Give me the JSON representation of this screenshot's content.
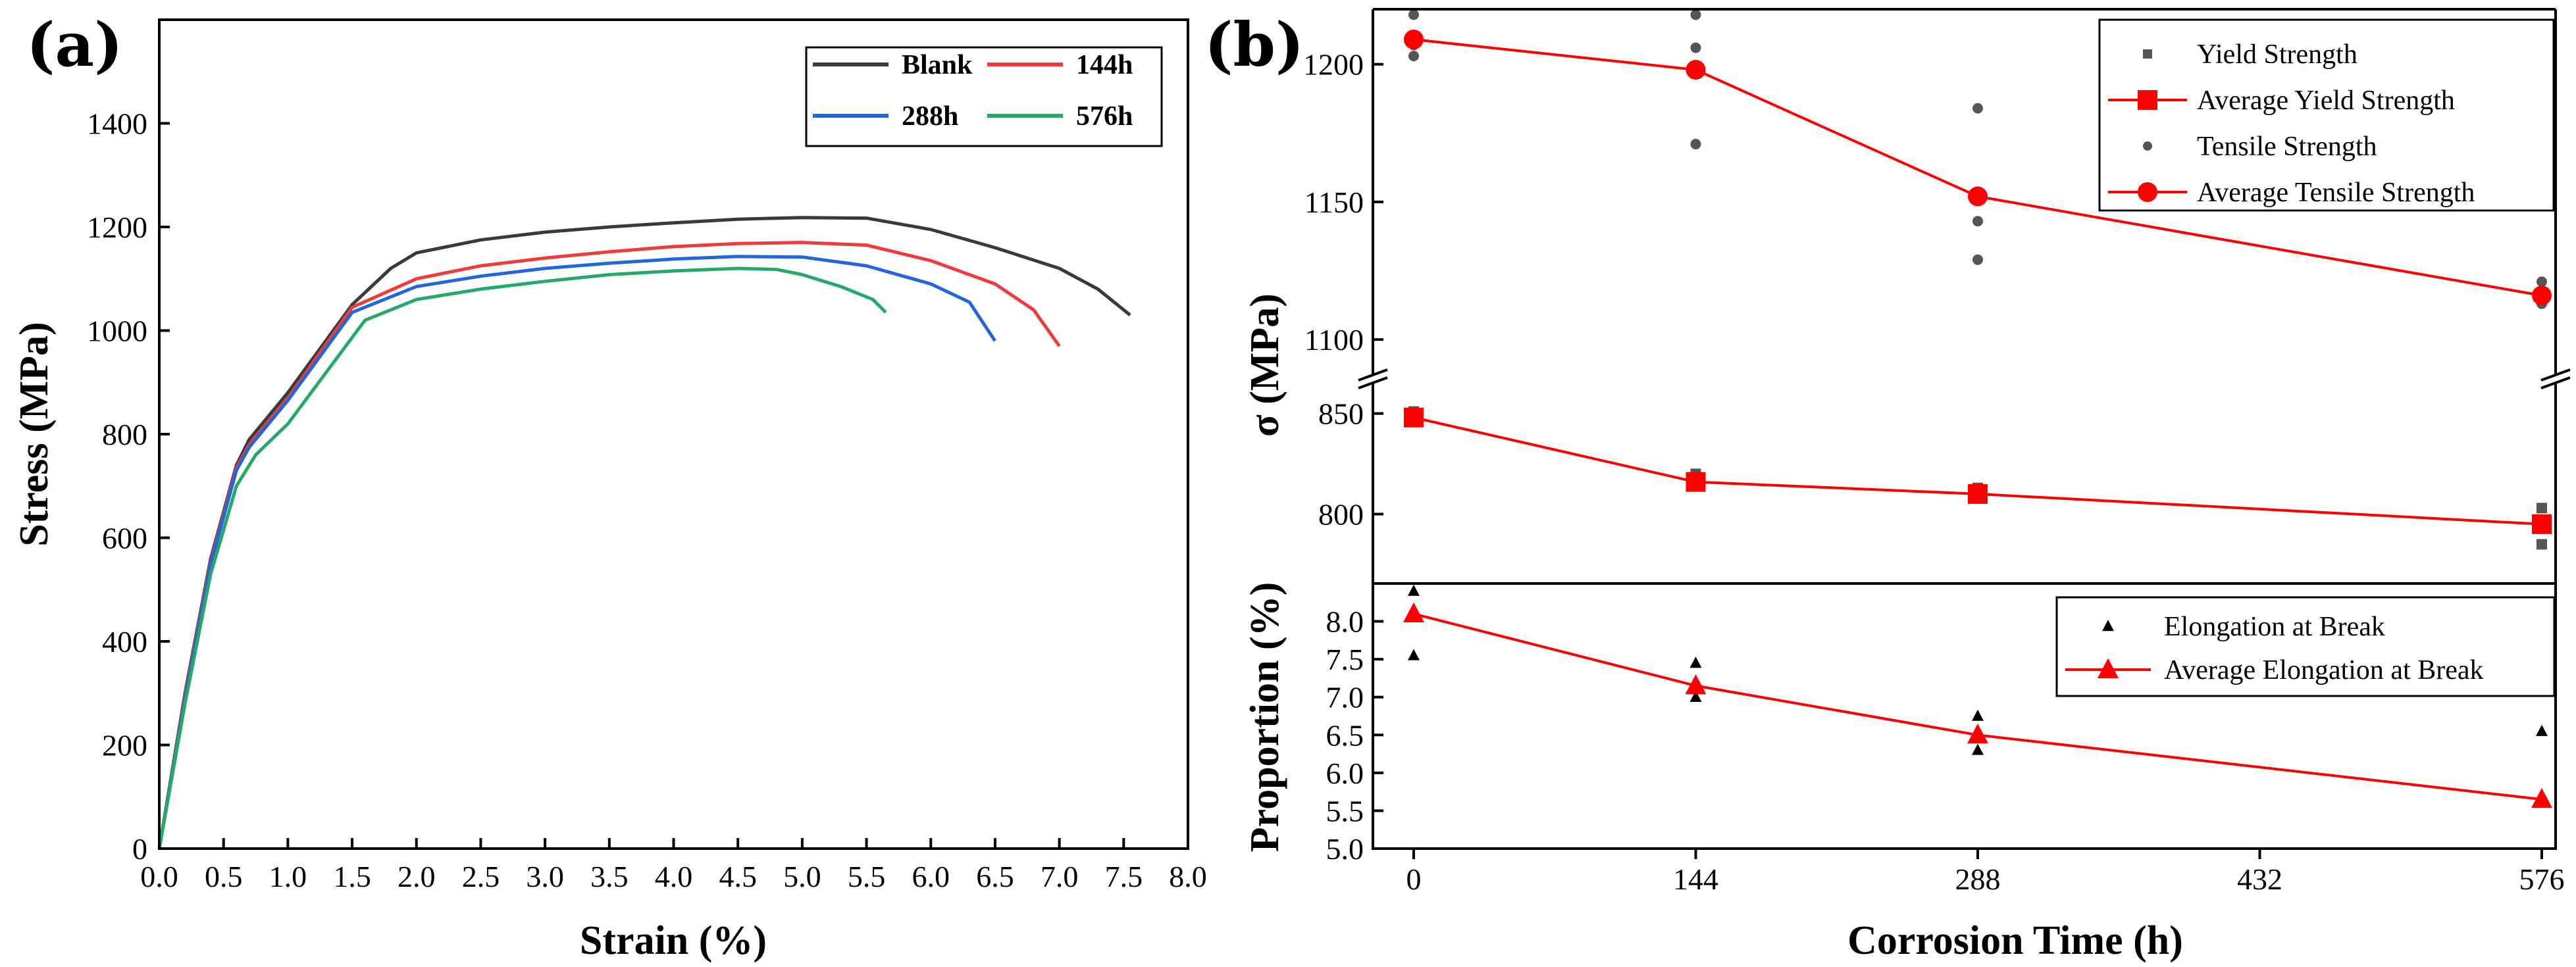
{
  "panels": {
    "a_label": "(a)",
    "b_label": "(b)"
  },
  "chart_data": [
    {
      "type": "line",
      "panel": "(a)",
      "xlabel": "Strain (%)",
      "ylabel": "Stress (MPa)",
      "xlim": [
        0,
        8
      ],
      "ylim": [
        0,
        1600
      ],
      "xticks": [
        0,
        0.5,
        1,
        1.5,
        2,
        2.5,
        3,
        3.5,
        4,
        4.5,
        5,
        5.5,
        6,
        6.5,
        7,
        7.5,
        8
      ],
      "xtick_labels": [
        "0.0",
        "0.5",
        "1.0",
        "1.5",
        "2.0",
        "2.5",
        "3.0",
        "3.5",
        "4.0",
        "4.5",
        "5.0",
        "5.5",
        "6.0",
        "6.5",
        "7.0",
        "7.5",
        "8.0"
      ],
      "yticks": [
        0,
        200,
        400,
        600,
        800,
        1000,
        1200,
        1400
      ],
      "ytick_labels": [
        "0",
        "200",
        "400",
        "600",
        "800",
        "1000",
        "1200",
        "1400"
      ],
      "grid": false,
      "legend_position": "top-right",
      "series": [
        {
          "name": "Blank",
          "color": "#3a3a3a",
          "x": [
            0,
            0.2,
            0.4,
            0.6,
            0.7,
            1.0,
            1.5,
            1.8,
            2.0,
            2.5,
            3.0,
            3.5,
            4.0,
            4.5,
            5.0,
            5.5,
            6.0,
            6.5,
            7.0,
            7.3,
            7.55
          ],
          "y": [
            0,
            300,
            560,
            740,
            790,
            880,
            1050,
            1120,
            1150,
            1175,
            1190,
            1200,
            1208,
            1215,
            1218,
            1217,
            1195,
            1160,
            1120,
            1080,
            1030
          ]
        },
        {
          "name": "144h",
          "color": "#ee3b3b",
          "x": [
            0,
            0.2,
            0.4,
            0.6,
            0.7,
            1.0,
            1.5,
            2.0,
            2.5,
            3.0,
            3.5,
            4.0,
            4.5,
            5.0,
            5.5,
            6.0,
            6.5,
            6.8,
            7.0
          ],
          "y": [
            0,
            295,
            555,
            735,
            780,
            870,
            1045,
            1100,
            1125,
            1140,
            1152,
            1162,
            1168,
            1170,
            1165,
            1135,
            1090,
            1040,
            970
          ]
        },
        {
          "name": "288h",
          "color": "#2266dd",
          "x": [
            0,
            0.2,
            0.4,
            0.6,
            0.7,
            1.0,
            1.5,
            2.0,
            2.5,
            3.0,
            3.5,
            4.0,
            4.5,
            5.0,
            5.5,
            6.0,
            6.3,
            6.5
          ],
          "y": [
            0,
            290,
            550,
            730,
            775,
            865,
            1035,
            1085,
            1105,
            1120,
            1130,
            1138,
            1143,
            1142,
            1125,
            1090,
            1055,
            980
          ]
        },
        {
          "name": "576h",
          "color": "#22aa66",
          "x": [
            0,
            0.2,
            0.4,
            0.6,
            0.75,
            1.0,
            1.3,
            1.6,
            2.0,
            2.5,
            3.0,
            3.5,
            4.0,
            4.5,
            4.8,
            5.0,
            5.3,
            5.55,
            5.65
          ],
          "y": [
            0,
            280,
            530,
            700,
            760,
            820,
            920,
            1020,
            1060,
            1080,
            1095,
            1108,
            1115,
            1120,
            1118,
            1108,
            1085,
            1060,
            1035
          ]
        }
      ]
    },
    {
      "type": "scatter",
      "panel": "(b)",
      "xlabel": "Corrosion Time (h)",
      "ylabel_top": "σ (MPa)",
      "ylabel_bottom": "Proportion (%)",
      "xticks": [
        0,
        144,
        288,
        432,
        576
      ],
      "xtick_labels": [
        "0",
        "144",
        "288",
        "432",
        "576"
      ],
      "grid": false,
      "upper_axis": {
        "break_segments": [
          {
            "ylim": [
              1090,
              1220
            ],
            "yticks": [
              1100,
              1150,
              1200
            ],
            "ytick_labels": [
              "1100",
              "1150",
              "1200"
            ]
          },
          {
            "ylim": [
              775,
              860
            ],
            "yticks": [
              800,
              850
            ],
            "ytick_labels": [
              "800",
              "850"
            ]
          }
        ],
        "legend_position": "top-right",
        "series": [
          {
            "name": "Yield Strength",
            "marker": "square",
            "color": "#555555",
            "line": false,
            "x": [
              0,
              0,
              0,
              144,
              144,
              144,
              288,
              288,
              288,
              576,
              576,
              576
            ],
            "y": [
              846,
              849,
              851,
              814,
              817,
              820,
              808,
              811,
              813,
              785,
              797,
              803
            ]
          },
          {
            "name": "Average Yield Strength",
            "marker": "square",
            "color": "#ff0000",
            "line": true,
            "x": [
              0,
              144,
              288,
              576
            ],
            "y": [
              848,
              816,
              810,
              795
            ]
          },
          {
            "name": "Tensile Strength",
            "marker": "circle",
            "color": "#555555",
            "line": false,
            "x": [
              0,
              0,
              0,
              144,
              144,
              144,
              288,
              288,
              288,
              576,
              576,
              576
            ],
            "y": [
              1203,
              1207,
              1218,
              1171,
              1206,
              1218,
              1129,
              1143,
              1184,
              1113,
              1117,
              1121
            ]
          },
          {
            "name": "Average Tensile Strength",
            "marker": "circle",
            "color": "#ff0000",
            "line": true,
            "x": [
              0,
              144,
              288,
              576
            ],
            "y": [
              1209,
              1198,
              1152,
              1116
            ]
          }
        ]
      },
      "lower_axis": {
        "ylim": [
          5.0,
          8.5
        ],
        "yticks": [
          5.0,
          5.5,
          6.0,
          6.5,
          7.0,
          7.5,
          8.0
        ],
        "ytick_labels": [
          "5.0",
          "5.5",
          "6.0",
          "6.5",
          "7.0",
          "7.5",
          "8.0"
        ],
        "legend_position": "top-right",
        "series": [
          {
            "name": "Elongation at Break",
            "marker": "triangle",
            "color": "#000000",
            "line": false,
            "x": [
              0,
              0,
              144,
              144,
              288,
              288,
              576
            ],
            "y": [
              7.55,
              8.4,
              7.0,
              7.45,
              6.3,
              6.75,
              6.55
            ]
          },
          {
            "name": "Average Elongation at Break",
            "marker": "triangle",
            "color": "#ff0000",
            "line": true,
            "x": [
              0,
              144,
              288,
              576
            ],
            "y": [
              8.1,
              7.15,
              6.5,
              5.65
            ]
          }
        ]
      }
    }
  ]
}
